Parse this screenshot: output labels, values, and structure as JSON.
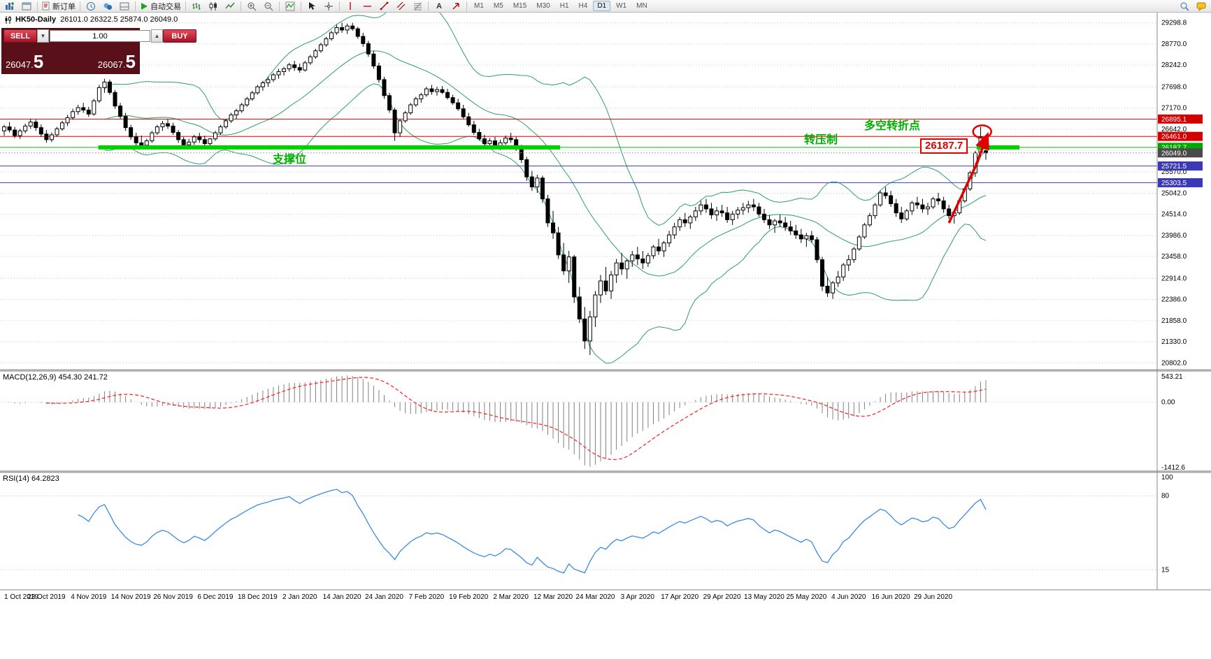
{
  "window": {
    "title": "HK50-Daily",
    "ohlc": "26101.0 26322.5 25874.0 26049.0"
  },
  "toolbar": {
    "new_order_label": "新订单",
    "autotrading_label": "自动交易",
    "text_tool_label": "A",
    "timeframes": [
      "M1",
      "M5",
      "M15",
      "M30",
      "H1",
      "H4",
      "D1",
      "W1",
      "MN"
    ],
    "active_timeframe": "D1"
  },
  "trade_panel": {
    "sell_label": "SELL",
    "buy_label": "BUY",
    "lot_value": "1.00",
    "bid_int": "26047.",
    "bid_pip": "5",
    "ask_int": "26067.",
    "ask_pip": "5"
  },
  "panels": {
    "macd_label": "MACD(12,26,9) 454.30 241.72",
    "rsi_label": "RSI(14) 64.2823"
  },
  "annotations": {
    "support": "支撑位",
    "resistance": "转压制",
    "turning_point": "多空转折点",
    "price_box": "26187.7"
  },
  "chart_data": {
    "type": "candlestick",
    "symbol": "HK50",
    "timeframe": "Daily",
    "title": "HK50-Daily 26101.0 26322.5 25874.0 26049.0",
    "y_range": [
      20650,
      29450
    ],
    "y_grid_labels": [
      29298.8,
      28770.0,
      28242.0,
      27698.0,
      27170.0,
      26642.0,
      26114.0,
      25570.0,
      25042.0,
      24514.0,
      23986.0,
      23458.0,
      22914.0,
      22386.0,
      21858.0,
      21330.0,
      20802.0
    ],
    "x_tick_labels": [
      "1 Oct 2019",
      "23 Oct 2019",
      "4 Nov 2019",
      "14 Nov 2019",
      "26 Nov 2019",
      "6 Dec 2019",
      "18 Dec 2019",
      "2 Jan 2020",
      "14 Jan 2020",
      "24 Jan 2020",
      "7 Feb 2020",
      "19 Feb 2020",
      "2 Mar 2020",
      "12 Mar 2020",
      "24 Mar 2020",
      "3 Apr 2020",
      "17 Apr 2020",
      "29 Apr 2020",
      "13 May 2020",
      "25 May 2020",
      "4 Jun 2020",
      "16 Jun 2020",
      "29 Jun 2020"
    ],
    "x_tick_every": 8,
    "candles": [
      [
        26600,
        26750,
        26480,
        26700
      ],
      [
        26700,
        26820,
        26560,
        26620
      ],
      [
        26620,
        26700,
        26420,
        26480
      ],
      [
        26480,
        26650,
        26400,
        26600
      ],
      [
        26600,
        26780,
        26540,
        26720
      ],
      [
        26720,
        26900,
        26650,
        26820
      ],
      [
        26820,
        26880,
        26600,
        26680
      ],
      [
        26680,
        26760,
        26450,
        26520
      ],
      [
        26520,
        26620,
        26300,
        26380
      ],
      [
        26380,
        26560,
        26320,
        26500
      ],
      [
        26500,
        26700,
        26450,
        26650
      ],
      [
        26650,
        26850,
        26600,
        26800
      ],
      [
        26800,
        27000,
        26720,
        26930
      ],
      [
        26930,
        27150,
        26880,
        27080
      ],
      [
        27080,
        27250,
        27000,
        27180
      ],
      [
        27180,
        27300,
        27050,
        27120
      ],
      [
        27120,
        27200,
        26950,
        27020
      ],
      [
        27020,
        27400,
        26980,
        27350
      ],
      [
        27350,
        27750,
        27300,
        27680
      ],
      [
        27680,
        27900,
        27550,
        27820
      ],
      [
        27820,
        27880,
        27500,
        27560
      ],
      [
        27560,
        27620,
        27150,
        27220
      ],
      [
        27220,
        27300,
        26900,
        26960
      ],
      [
        26960,
        27050,
        26600,
        26680
      ],
      [
        26680,
        26750,
        26380,
        26450
      ],
      [
        26450,
        26550,
        26200,
        26300
      ],
      [
        26300,
        26480,
        26190,
        26240
      ],
      [
        26240,
        26400,
        26150,
        26350
      ],
      [
        26350,
        26600,
        26300,
        26550
      ],
      [
        26550,
        26750,
        26500,
        26700
      ],
      [
        26700,
        26850,
        26600,
        26780
      ],
      [
        26780,
        26900,
        26650,
        26720
      ],
      [
        26720,
        26800,
        26500,
        26560
      ],
      [
        26560,
        26620,
        26300,
        26380
      ],
      [
        26380,
        26450,
        26180,
        26250
      ],
      [
        26250,
        26400,
        26150,
        26320
      ],
      [
        26320,
        26500,
        26250,
        26450
      ],
      [
        26450,
        26550,
        26300,
        26380
      ],
      [
        26380,
        26480,
        26200,
        26280
      ],
      [
        26280,
        26420,
        26220,
        26400
      ],
      [
        26400,
        26600,
        26350,
        26550
      ],
      [
        26550,
        26750,
        26500,
        26700
      ],
      [
        26700,
        26900,
        26650,
        26850
      ],
      [
        26850,
        27050,
        26800,
        27000
      ],
      [
        27000,
        27150,
        26900,
        27100
      ],
      [
        27100,
        27300,
        27050,
        27250
      ],
      [
        27250,
        27450,
        27200,
        27400
      ],
      [
        27400,
        27600,
        27350,
        27550
      ],
      [
        27550,
        27750,
        27500,
        27700
      ],
      [
        27700,
        27850,
        27600,
        27800
      ],
      [
        27800,
        27950,
        27700,
        27880
      ],
      [
        27880,
        28050,
        27820,
        28000
      ],
      [
        28000,
        28150,
        27900,
        28080
      ],
      [
        28080,
        28200,
        27980,
        28150
      ],
      [
        28150,
        28300,
        28080,
        28250
      ],
      [
        28250,
        28350,
        28100,
        28180
      ],
      [
        28180,
        28280,
        28050,
        28120
      ],
      [
        28120,
        28350,
        28080,
        28300
      ],
      [
        28300,
        28500,
        28250,
        28450
      ],
      [
        28450,
        28650,
        28400,
        28600
      ],
      [
        28600,
        28800,
        28550,
        28750
      ],
      [
        28750,
        28950,
        28700,
        28900
      ],
      [
        28900,
        29100,
        28850,
        29050
      ],
      [
        29050,
        29250,
        29000,
        29180
      ],
      [
        29180,
        29300,
        29050,
        29120
      ],
      [
        29120,
        29280,
        29020,
        29220
      ],
      [
        29220,
        29298,
        29100,
        29150
      ],
      [
        29150,
        29200,
        28900,
        28960
      ],
      [
        28960,
        29050,
        28700,
        28780
      ],
      [
        28780,
        28850,
        28450,
        28520
      ],
      [
        28520,
        28600,
        28150,
        28220
      ],
      [
        28220,
        28300,
        27800,
        27880
      ],
      [
        27880,
        27950,
        27400,
        27480
      ],
      [
        27480,
        27550,
        27050,
        27120
      ],
      [
        27120,
        27180,
        26350,
        26550
      ],
      [
        26550,
        26900,
        26450,
        26850
      ],
      [
        26850,
        27100,
        26800,
        27050
      ],
      [
        27050,
        27300,
        27000,
        27250
      ],
      [
        27250,
        27450,
        27200,
        27400
      ],
      [
        27400,
        27550,
        27300,
        27500
      ],
      [
        27500,
        27700,
        27450,
        27650
      ],
      [
        27650,
        27750,
        27500,
        27580
      ],
      [
        27580,
        27700,
        27480,
        27630
      ],
      [
        27630,
        27720,
        27520,
        27560
      ],
      [
        27560,
        27650,
        27380,
        27430
      ],
      [
        27430,
        27500,
        27250,
        27300
      ],
      [
        27300,
        27400,
        27100,
        27150
      ],
      [
        27150,
        27250,
        26900,
        26950
      ],
      [
        26950,
        27050,
        26700,
        26750
      ],
      [
        26750,
        26850,
        26500,
        26560
      ],
      [
        26560,
        26650,
        26350,
        26400
      ],
      [
        26400,
        26500,
        26200,
        26280
      ],
      [
        26280,
        26420,
        26150,
        26350
      ],
      [
        26350,
        26450,
        26180,
        26230
      ],
      [
        26230,
        26380,
        26120,
        26300
      ],
      [
        26300,
        26480,
        26250,
        26420
      ],
      [
        26420,
        26550,
        26300,
        26380
      ],
      [
        26380,
        26450,
        26100,
        26150
      ],
      [
        26150,
        26250,
        25800,
        25880
      ],
      [
        25880,
        25950,
        25350,
        25450
      ],
      [
        25450,
        25600,
        25100,
        25200
      ],
      [
        25200,
        25500,
        25050,
        25420
      ],
      [
        25420,
        25480,
        24800,
        24900
      ],
      [
        24900,
        25000,
        24200,
        24300
      ],
      [
        24300,
        24600,
        23900,
        24050
      ],
      [
        24050,
        24200,
        23400,
        23500
      ],
      [
        23500,
        23800,
        23000,
        23100
      ],
      [
        23100,
        23600,
        22800,
        23450
      ],
      [
        23450,
        23500,
        22300,
        22450
      ],
      [
        22450,
        22700,
        21800,
        21900
      ],
      [
        21900,
        22200,
        21150,
        21350
      ],
      [
        21350,
        22100,
        21000,
        21950
      ],
      [
        21950,
        22600,
        21700,
        22500
      ],
      [
        22500,
        23000,
        22300,
        22850
      ],
      [
        22850,
        23200,
        22500,
        22600
      ],
      [
        22600,
        23100,
        22400,
        23000
      ],
      [
        23000,
        23400,
        22800,
        23300
      ],
      [
        23300,
        23550,
        23000,
        23150
      ],
      [
        23150,
        23400,
        22900,
        23350
      ],
      [
        23350,
        23600,
        23200,
        23500
      ],
      [
        23500,
        23700,
        23250,
        23400
      ],
      [
        23400,
        23600,
        23150,
        23300
      ],
      [
        23300,
        23550,
        23200,
        23480
      ],
      [
        23480,
        23750,
        23400,
        23700
      ],
      [
        23700,
        23900,
        23500,
        23600
      ],
      [
        23600,
        23850,
        23450,
        23800
      ],
      [
        23800,
        24100,
        23700,
        24000
      ],
      [
        24000,
        24300,
        23900,
        24200
      ],
      [
        24200,
        24450,
        24100,
        24380
      ],
      [
        24380,
        24550,
        24200,
        24300
      ],
      [
        24300,
        24500,
        24150,
        24450
      ],
      [
        24450,
        24700,
        24350,
        24600
      ],
      [
        24600,
        24850,
        24500,
        24750
      ],
      [
        24750,
        24900,
        24550,
        24650
      ],
      [
        24650,
        24800,
        24400,
        24500
      ],
      [
        24500,
        24700,
        24350,
        24600
      ],
      [
        24600,
        24750,
        24450,
        24550
      ],
      [
        24550,
        24700,
        24300,
        24380
      ],
      [
        24380,
        24600,
        24250,
        24520
      ],
      [
        24520,
        24700,
        24400,
        24620
      ],
      [
        24620,
        24800,
        24500,
        24680
      ],
      [
        24680,
        24850,
        24550,
        24750
      ],
      [
        24750,
        24900,
        24600,
        24700
      ],
      [
        24700,
        24800,
        24450,
        24520
      ],
      [
        24520,
        24650,
        24300,
        24380
      ],
      [
        24380,
        24500,
        24150,
        24250
      ],
      [
        24250,
        24400,
        24050,
        24350
      ],
      [
        24350,
        24500,
        24200,
        24300
      ],
      [
        24300,
        24450,
        24100,
        24200
      ],
      [
        24200,
        24350,
        24000,
        24100
      ],
      [
        24100,
        24250,
        23900,
        24000
      ],
      [
        24000,
        24150,
        23800,
        23900
      ],
      [
        23900,
        24050,
        23700,
        23980
      ],
      [
        23980,
        24100,
        23800,
        23880
      ],
      [
        23880,
        23950,
        23300,
        23380
      ],
      [
        23380,
        23450,
        22600,
        22720
      ],
      [
        22720,
        22950,
        22450,
        22550
      ],
      [
        22550,
        22850,
        22400,
        22800
      ],
      [
        22800,
        23100,
        22700,
        22950
      ],
      [
        22950,
        23300,
        22850,
        23250
      ],
      [
        23250,
        23500,
        23100,
        23380
      ],
      [
        23380,
        23700,
        23300,
        23650
      ],
      [
        23650,
        24000,
        23600,
        23950
      ],
      [
        23950,
        24300,
        23900,
        24250
      ],
      [
        24250,
        24550,
        24200,
        24480
      ],
      [
        24480,
        24800,
        24400,
        24750
      ],
      [
        24750,
        25100,
        24700,
        25050
      ],
      [
        25050,
        25200,
        24900,
        24980
      ],
      [
        24980,
        25100,
        24700,
        24780
      ],
      [
        24780,
        24900,
        24450,
        24550
      ],
      [
        24550,
        24700,
        24300,
        24400
      ],
      [
        24400,
        24650,
        24350,
        24600
      ],
      [
        24600,
        24850,
        24500,
        24800
      ],
      [
        24800,
        24950,
        24650,
        24750
      ],
      [
        24750,
        24900,
        24550,
        24650
      ],
      [
        24650,
        24800,
        24500,
        24700
      ],
      [
        24700,
        24950,
        24650,
        24900
      ],
      [
        24900,
        25050,
        24750,
        24850
      ],
      [
        24850,
        24950,
        24550,
        24650
      ],
      [
        24650,
        24750,
        24400,
        24480
      ],
      [
        24480,
        24600,
        24280,
        24550
      ],
      [
        24550,
        24900,
        24500,
        24850
      ],
      [
        24850,
        25200,
        24800,
        25150
      ],
      [
        25150,
        25600,
        25100,
        25550
      ],
      [
        25550,
        26100,
        25450,
        26050
      ],
      [
        26050,
        26700,
        25950,
        26450
      ],
      [
        26101,
        26322,
        25874,
        26049
      ]
    ],
    "bollinger": {
      "period": 20,
      "deviation": 2,
      "color": "#2f9e68"
    },
    "levels": [
      {
        "value": 26895.1,
        "label": "26895.1",
        "color": "#e00000",
        "badge_color": "#d40000",
        "width": 1
      },
      {
        "value": 26461.0,
        "label": "26461.0",
        "color": "#e00000",
        "badge_color": "#d40000",
        "width": 1
      },
      {
        "value": 26187.7,
        "label": "26187.7",
        "color": "#00c000",
        "badge_color": "#00a800",
        "width": 1
      },
      {
        "value": 25721.5,
        "label": "25721.5",
        "color": "#4444cc",
        "badge_color": "#3a3ab8",
        "width": 1
      },
      {
        "value": 25303.5,
        "label": "25303.5",
        "color": "#4444cc",
        "badge_color": "#3a3ab8",
        "width": 1
      }
    ],
    "thick_segments": [
      {
        "value": 26187.7,
        "x1_frac": 0.085,
        "x2_frac": 0.484,
        "color": "#00d000",
        "width": 6
      },
      {
        "value": 26187.7,
        "x1_frac": 0.844,
        "x2_frac": 0.881,
        "color": "#00d000",
        "width": 6
      }
    ],
    "current_price": {
      "value": 26049.0,
      "label": "26049.0",
      "badge_color": "#4a4a4a"
    },
    "trend_arrow": {
      "color": "#e00000",
      "points_price": [
        [
          179,
          24300
        ],
        [
          184,
          25700
        ],
        [
          186,
          26400
        ]
      ],
      "circle_price": [
        185.3,
        26580
      ]
    },
    "macd": {
      "fast": 12,
      "slow": 26,
      "signal": 9,
      "axis_labels": {
        "max": "543.21",
        "zero": "0.00",
        "min": "-1412.6"
      },
      "histogram_color": "#808080",
      "signal_color": "#ff2020"
    },
    "rsi": {
      "period": 14,
      "color": "#3b8be0",
      "axis_labels": [
        "100",
        "80",
        "15"
      ],
      "level_lines": [
        80,
        15
      ]
    }
  }
}
